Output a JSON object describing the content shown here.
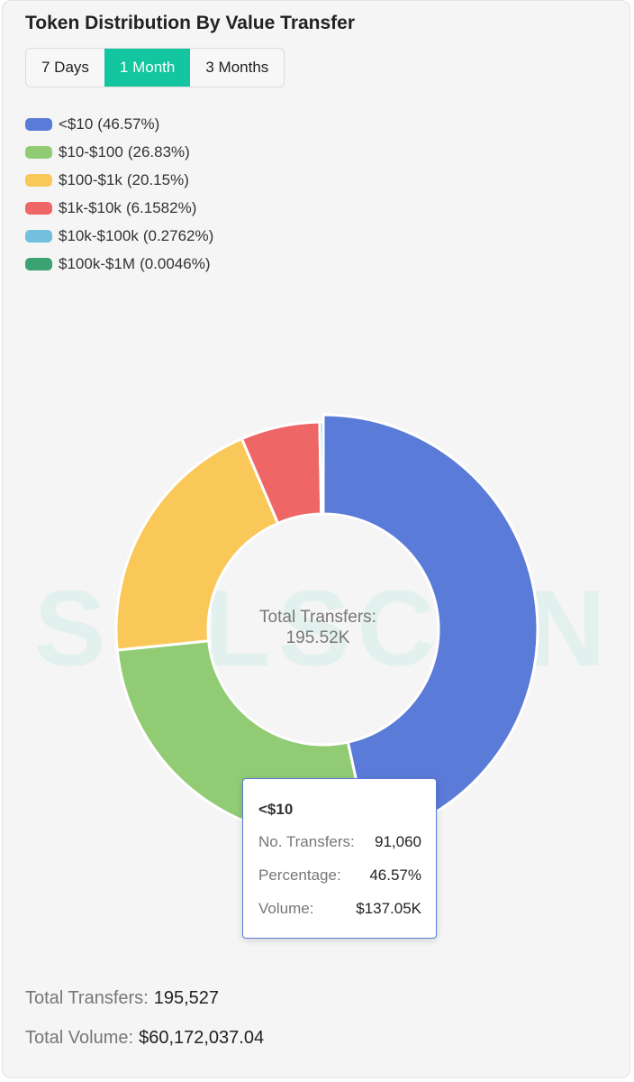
{
  "header": {
    "title": "Token Distribution By Value Transfer",
    "tabs": [
      "7 Days",
      "1 Month",
      "3 Months"
    ],
    "active_tab": 1
  },
  "chart_data": {
    "type": "pie",
    "donut": true,
    "categories": [
      "<$10",
      "$10-$100",
      "$100-$1k",
      "$1k-$10k",
      "$10k-$100k",
      "$100k-$1M"
    ],
    "values": [
      46.57,
      26.83,
      20.15,
      6.1582,
      0.2762,
      0.0046
    ],
    "value_labels": [
      "(46.57%)",
      "(26.83%)",
      "(20.15%)",
      "(6.1582%)",
      "(0.2762%)",
      "(0.0046%)"
    ],
    "colors": [
      "#5b7bd8",
      "#91cc75",
      "#f9c859",
      "#ee6666",
      "#73c0de",
      "#3ba272"
    ],
    "center_label": "Total Transfers:",
    "center_value": "195.52K"
  },
  "watermark": "SOLSCAN",
  "tooltip": {
    "title": "<$10",
    "rows": [
      {
        "label": "No. Transfers:",
        "value": "91,060"
      },
      {
        "label": "Percentage:",
        "value": "46.57%"
      },
      {
        "label": "Volume:",
        "value": "$137.05K"
      }
    ]
  },
  "footer": [
    {
      "label": "Total Transfers:",
      "value": "195,527"
    },
    {
      "label": "Total Volume:",
      "value": "$60,172,037.04"
    }
  ]
}
